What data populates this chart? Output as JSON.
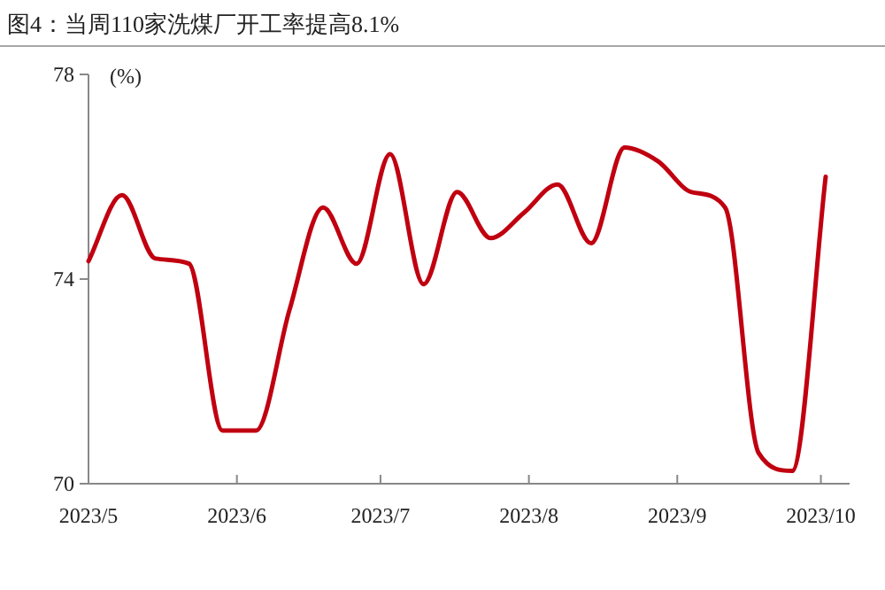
{
  "chart_data": {
    "type": "line",
    "title": "图4：当周110家洗煤厂开工率提高8.1%",
    "ylabel": "(%)",
    "x": [
      "2023-05-01",
      "2023-05-08",
      "2023-05-15",
      "2023-05-22",
      "2023-05-29",
      "2023-06-05",
      "2023-06-12",
      "2023-06-19",
      "2023-06-26",
      "2023-07-03",
      "2023-07-10",
      "2023-07-17",
      "2023-07-24",
      "2023-07-31",
      "2023-08-07",
      "2023-08-14",
      "2023-08-21",
      "2023-08-28",
      "2023-09-04",
      "2023-09-11",
      "2023-09-18",
      "2023-09-25",
      "2023-10-02"
    ],
    "series": [
      {
        "color": "#c00010",
        "values": [
          74.35,
          75.64,
          74.4,
          74.3,
          71.04,
          71.04,
          73.4,
          75.4,
          74.3,
          76.44,
          73.9,
          75.7,
          74.8,
          75.3,
          75.85,
          74.7,
          76.57,
          76.3,
          75.7,
          75.4,
          70.6,
          70.25,
          76.0
        ]
      }
    ],
    "xlim": [
      "2023-05-01",
      "2023-10-07"
    ],
    "xticks": [
      {
        "value": "2023-05-01",
        "label": "2023/5"
      },
      {
        "value": "2023-06-01",
        "label": "2023/6"
      },
      {
        "value": "2023-07-01",
        "label": "2023/7"
      },
      {
        "value": "2023-08-01",
        "label": "2023/8"
      },
      {
        "value": "2023-09-01",
        "label": "2023/9"
      },
      {
        "value": "2023-10-01",
        "label": "2023/10"
      }
    ],
    "ylim": [
      70,
      78
    ],
    "yticks": [
      70,
      74,
      78
    ],
    "grid": false,
    "marker": "none",
    "line_style": "solid"
  }
}
